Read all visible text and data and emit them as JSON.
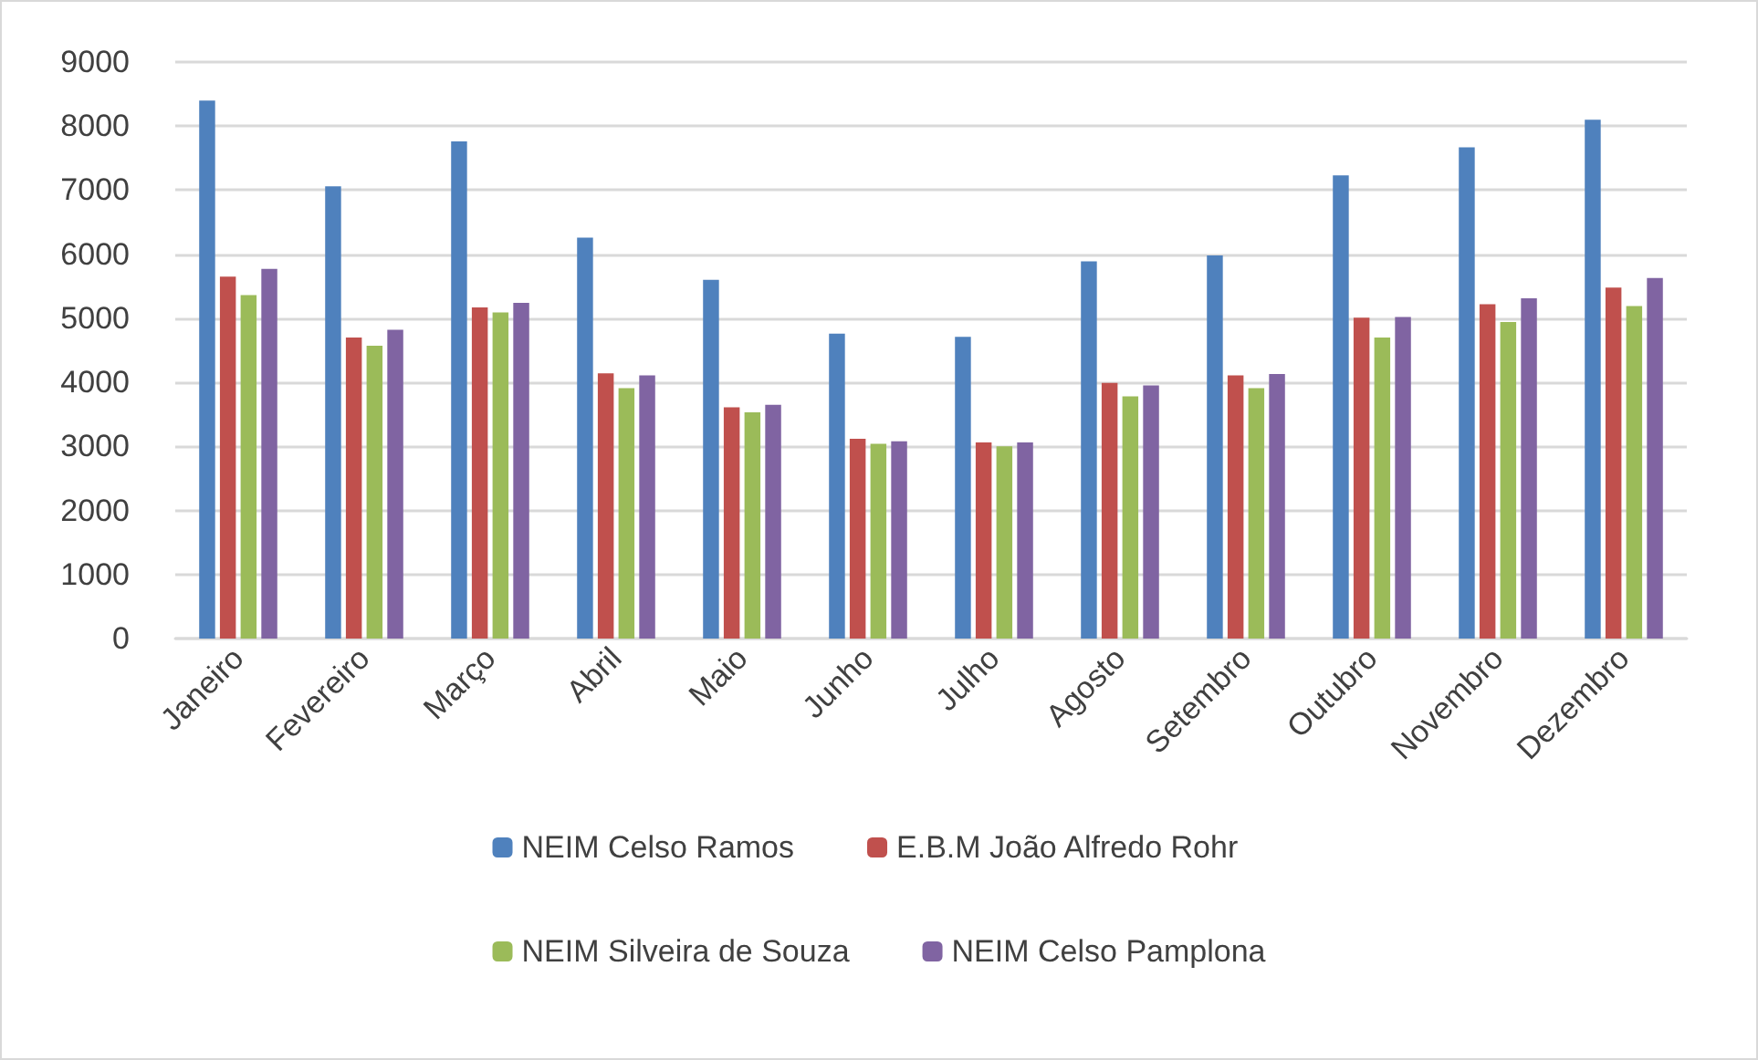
{
  "chart_data": {
    "type": "bar",
    "categories": [
      "Janeiro",
      "Fevereiro",
      "Março",
      "Abril",
      "Maio",
      "Junho",
      "Julho",
      "Agosto",
      "Setembro",
      "Outubro",
      "Novembro",
      "Dezembro"
    ],
    "series": [
      {
        "name": "NEIM Celso Ramos",
        "color": "#4f81bd",
        "values": [
          8400,
          7060,
          7760,
          6260,
          5600,
          4760,
          4710,
          5890,
          5980,
          7230,
          7670,
          8100
        ]
      },
      {
        "name": "E.B.M João Alfredo Rohr",
        "color": "#c0504d",
        "values": [
          5650,
          4700,
          5170,
          4140,
          3610,
          3120,
          3060,
          3990,
          4110,
          5010,
          5220,
          5480
        ]
      },
      {
        "name": "NEIM Silveira de Souza",
        "color": "#9bbb59",
        "values": [
          5360,
          4570,
          5090,
          3910,
          3530,
          3040,
          3000,
          3780,
          3910,
          4700,
          4940,
          5190
        ]
      },
      {
        "name": "NEIM Celso Pamplona",
        "color": "#8064a2",
        "values": [
          5770,
          4820,
          5240,
          4110,
          3650,
          3080,
          3060,
          3950,
          4130,
          5020,
          5310,
          5630
        ]
      }
    ],
    "ylim": [
      0,
      9000
    ],
    "yticks": [
      0,
      1000,
      2000,
      3000,
      4000,
      5000,
      6000,
      7000,
      8000,
      9000
    ],
    "grid": "y",
    "legend": "bottom"
  }
}
